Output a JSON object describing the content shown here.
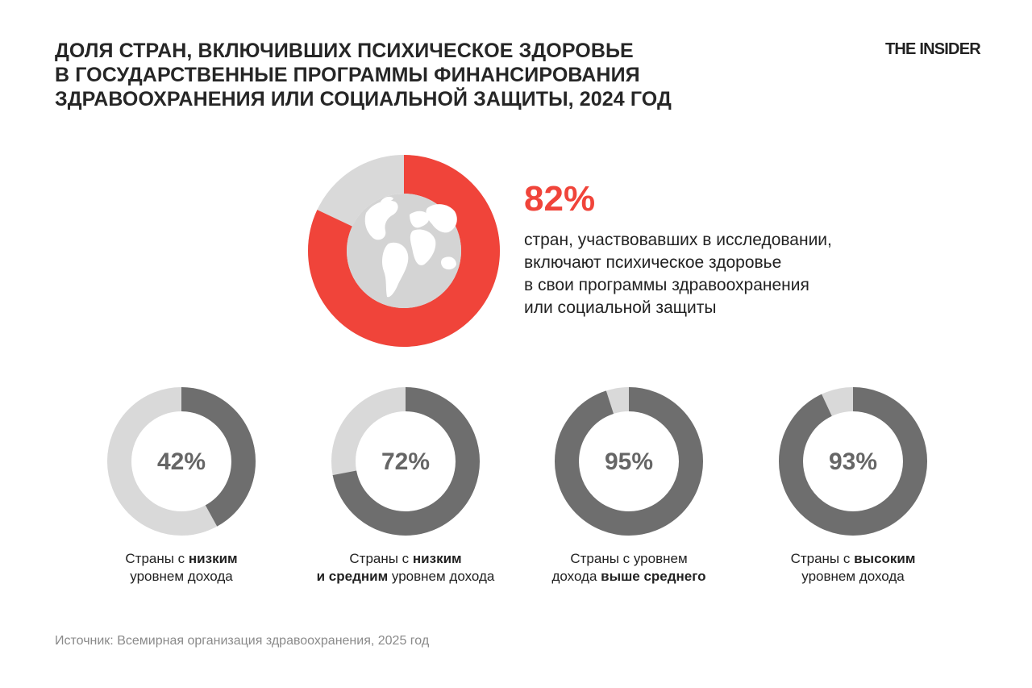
{
  "title_lines": [
    "ДОЛЯ СТРАН, ВКЛЮЧИВШИХ ПСИХИЧЕСКОЕ ЗДОРОВЬЕ",
    "В ГОСУДАРСТВЕННЫЕ ПРОГРАММЫ ФИНАНСИРОВАНИЯ",
    "ЗДРАВООХРАНЕНИЯ ИЛИ СОЦИАЛЬНОЙ ЗАЩИТЫ, 2024 ГОД"
  ],
  "brand": "THE INSIDER",
  "source": "Источник: Всемирная организация здравоохранения, 2025 год",
  "colors": {
    "accent_red": "#f0443a",
    "dark_gray": "#6e6e6e",
    "light_gray": "#d9d9d9",
    "globe": "#d4d4d4"
  },
  "icon": "globe-icon",
  "chart_data": [
    {
      "type": "donut",
      "value": 82,
      "label": "82%",
      "description_lines": [
        "стран, участвовавших в исследовании,",
        "включают психическое здоровье",
        "в свои программы здравоохранения",
        "или социальной защиты"
      ]
    },
    {
      "type": "donut",
      "value": 42,
      "label": "42%",
      "caption_lines": [
        [
          {
            "t": "Страны с ",
            "b": false
          },
          {
            "t": "низким",
            "b": true
          }
        ],
        [
          {
            "t": "уровнем дохода",
            "b": false
          }
        ]
      ]
    },
    {
      "type": "donut",
      "value": 72,
      "label": "72%",
      "caption_lines": [
        [
          {
            "t": "Страны с ",
            "b": false
          },
          {
            "t": "низким",
            "b": true
          }
        ],
        [
          {
            "t": "и средним",
            "b": true
          },
          {
            "t": " уровнем дохода",
            "b": false
          }
        ]
      ]
    },
    {
      "type": "donut",
      "value": 95,
      "label": "95%",
      "caption_lines": [
        [
          {
            "t": "Страны с уровнем",
            "b": false
          }
        ],
        [
          {
            "t": "дохода ",
            "b": false
          },
          {
            "t": "выше среднего",
            "b": true
          }
        ]
      ]
    },
    {
      "type": "donut",
      "value": 93,
      "label": "93%",
      "caption_lines": [
        [
          {
            "t": "Страны с ",
            "b": false
          },
          {
            "t": "высоким",
            "b": true
          }
        ],
        [
          {
            "t": "уровнем дохода",
            "b": false
          }
        ]
      ]
    }
  ]
}
